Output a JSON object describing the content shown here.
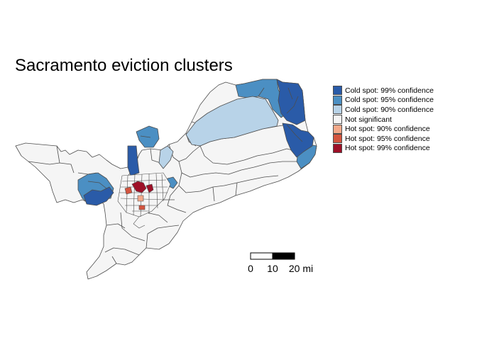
{
  "title": "Sacramento eviction clusters",
  "legend": {
    "items": [
      {
        "label": "Cold spot: 99% confidence",
        "color": "#2a5ba8"
      },
      {
        "label": "Cold spot: 95% confidence",
        "color": "#4b8fc3"
      },
      {
        "label": "Cold spot: 90% confidence",
        "color": "#b8d3e8"
      },
      {
        "label": "Not significant",
        "color": "#f5f5f5"
      },
      {
        "label": "Hot spot: 90% confidence",
        "color": "#f4a98a"
      },
      {
        "label": "Hot spot: 95% confidence",
        "color": "#d4553f"
      },
      {
        "label": "Hot spot: 99% confidence",
        "color": "#9e1027"
      }
    ]
  },
  "scalebar": {
    "ticks": [
      "0",
      "10",
      "20 mi"
    ]
  },
  "colors": {
    "boundary": "#4d4d4d",
    "background": "#ffffff"
  }
}
